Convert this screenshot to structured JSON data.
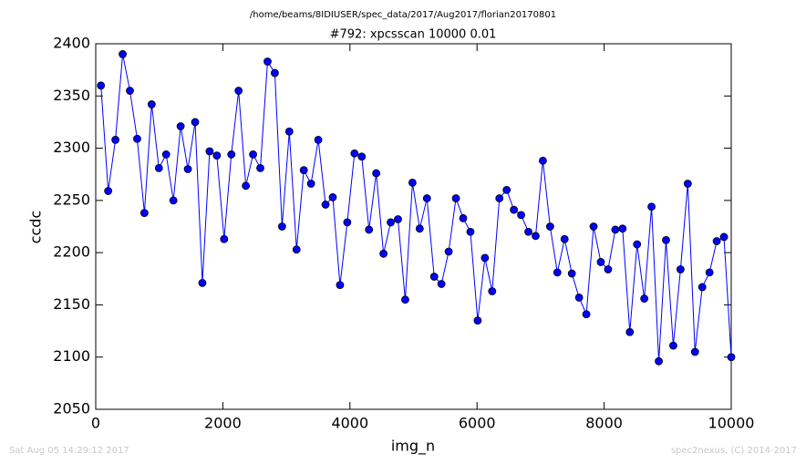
{
  "chart_data": {
    "type": "line",
    "suptitle": "/home/beams/8IDIUSER/spec_data/2017/Aug2017/florian20170801",
    "title": "#792: xpcsscan 10000 0.01",
    "x_label": "img_n",
    "y_label": "ccdc",
    "footer_left": "Sat Aug 05 14:29:12 2017",
    "footer_right": "spec2nexus, (C) 2014-2017",
    "x": [
      82,
      196,
      310,
      424,
      538,
      652,
      766,
      880,
      994,
      1108,
      1222,
      1336,
      1450,
      1564,
      1678,
      1792,
      1906,
      2020,
      2134,
      2248,
      2362,
      2476,
      2590,
      2704,
      2818,
      2932,
      3046,
      3160,
      3274,
      3388,
      3502,
      3616,
      3730,
      3844,
      3958,
      4072,
      4186,
      4300,
      4414,
      4528,
      4642,
      4756,
      4870,
      4984,
      5098,
      5212,
      5326,
      5440,
      5554,
      5668,
      5782,
      5896,
      6010,
      6124,
      6238,
      6352,
      6466,
      6580,
      6694,
      6808,
      6922,
      7036,
      7150,
      7264,
      7378,
      7492,
      7606,
      7720,
      7834,
      7948,
      8062,
      8176,
      8290,
      8404,
      8518,
      8632,
      8746,
      8860,
      8974,
      9088,
      9202,
      9316,
      9430,
      9544,
      9658,
      9772,
      9886,
      10000
    ],
    "series": [
      {
        "color": "#0000ff",
        "values": [
          2360,
          2259,
          2308,
          2390,
          2355,
          2309,
          2238,
          2342,
          2281,
          2294,
          2250,
          2321,
          2280,
          2325,
          2171,
          2297,
          2293,
          2213,
          2294,
          2355,
          2264,
          2294,
          2281,
          2383,
          2372,
          2225,
          2316,
          2203,
          2279,
          2266,
          2308,
          2246,
          2253,
          2169,
          2229,
          2295,
          2292,
          2222,
          2276,
          2199,
          2229,
          2232,
          2155,
          2267,
          2223,
          2252,
          2177,
          2170,
          2201,
          2252,
          2233,
          2220,
          2135,
          2195,
          2163,
          2252,
          2260,
          2241,
          2236,
          2220,
          2216,
          2288,
          2225,
          2181,
          2213,
          2180,
          2157,
          2141,
          2225,
          2191,
          2184,
          2222,
          2223,
          2124,
          2208,
          2156,
          2244,
          2096,
          2212,
          2111,
          2184,
          2266,
          2105,
          2167,
          2181,
          2211,
          2215,
          2100
        ]
      }
    ],
    "xlim": [
      0,
      10000
    ],
    "xticks": [
      0,
      2000,
      4000,
      6000,
      8000,
      10000
    ],
    "ylim": [
      2050,
      2400
    ],
    "yticks": [
      2050,
      2100,
      2150,
      2200,
      2250,
      2300,
      2350,
      2400
    ]
  }
}
